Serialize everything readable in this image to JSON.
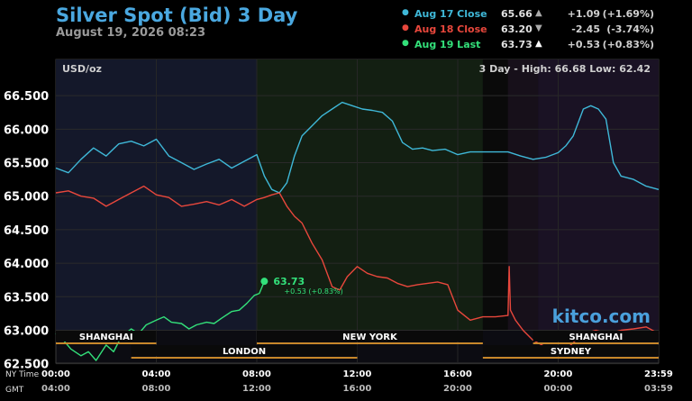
{
  "header": {
    "title": "Silver Spot (Bid) 3 Day",
    "timestamp": "August 19, 2026 08:23"
  },
  "legend": [
    {
      "name": "Aug 17 Close",
      "value": "65.66",
      "arrow": "▲",
      "change": "+1.09",
      "pct": "(+1.69%)",
      "color": "#3fb8d8",
      "text_color": "#3fb8d8",
      "arrow_color": "#aaaaaa"
    },
    {
      "name": "Aug 18 Close",
      "value": "63.20",
      "arrow": "▼",
      "change": "-2.45",
      "pct": "(-3.74%)",
      "color": "#e8473c",
      "text_color": "#e8473c",
      "arrow_color": "#aaaaaa"
    },
    {
      "name": "Aug 19 Last",
      "value": "63.73",
      "arrow": "▲",
      "change": "+0.53",
      "pct": "(+0.83%)",
      "color": "#33e07a",
      "text_color": "#33e07a",
      "arrow_color": "#ffffff"
    }
  ],
  "plot": {
    "unit": "USD/oz",
    "range_text": "3 Day - High: 66.68  Low: 62.42",
    "watermark": "kitco.com",
    "last_label": {
      "price": "63.73",
      "change": "+0.53 (+0.83%)"
    }
  },
  "sessions": [
    {
      "name": "SHANGHAI",
      "start": 0,
      "end": 4,
      "row": 1,
      "color": "#c8882a"
    },
    {
      "name": "NEW YORK",
      "start": 8,
      "end": 17,
      "row": 1,
      "color": "#c8882a"
    },
    {
      "name": "SHANGHAI",
      "start": 19,
      "end": 24,
      "row": 1,
      "color": "#c8882a"
    },
    {
      "name": "LONDON",
      "start": 3,
      "end": 12,
      "row": 2,
      "color": "#c8882a"
    },
    {
      "name": "SYDNEY",
      "start": 17,
      "end": 24,
      "row": 2,
      "color": "#c8882a"
    }
  ],
  "footer": {
    "ny_label": "NY Time",
    "gmt_label": "GMT",
    "ny_ticks": [
      "00:00",
      "04:00",
      "08:00",
      "12:00",
      "16:00",
      "20:00",
      "23:59"
    ],
    "gmt_ticks": [
      "04:00",
      "08:00",
      "12:00",
      "16:00",
      "20:00",
      "00:00",
      "03:59"
    ]
  },
  "chart_data": {
    "type": "line",
    "title": "Silver Spot (Bid) 3 Day",
    "ylabel": "USD/oz",
    "xlabel": "NY Time",
    "x_range": [
      0,
      24
    ],
    "ylim": [
      62.2,
      66.9
    ],
    "y_ticks": [
      62.5,
      63.0,
      63.5,
      64.0,
      64.5,
      65.0,
      65.5,
      66.0,
      66.5
    ],
    "y_tick_labels": [
      "62.500",
      "63.000",
      "63.500",
      "64.000",
      "64.500",
      "65.000",
      "65.500",
      "66.000",
      "66.500"
    ],
    "x_tick_labels": [
      "00:00",
      "04:00",
      "08:00",
      "12:00",
      "16:00",
      "20:00",
      "23:59"
    ],
    "grid": true,
    "series": [
      {
        "name": "Aug 17 Close",
        "color": "#3fb8d8",
        "x": [
          0,
          0.5,
          1,
          1.5,
          2,
          2.5,
          3,
          3.5,
          4,
          4.5,
          5,
          5.5,
          6,
          6.5,
          7,
          7.5,
          8,
          8.3,
          8.6,
          8.9,
          9.2,
          9.5,
          9.8,
          10.2,
          10.6,
          11,
          11.4,
          11.8,
          12.2,
          12.6,
          13,
          13.4,
          13.8,
          14.2,
          14.6,
          15,
          15.5,
          16,
          16.5,
          17,
          17.5,
          18,
          18.5,
          19,
          19.5,
          20,
          20.3,
          20.6,
          21,
          21.3,
          21.6,
          21.9,
          22.2,
          22.5,
          23,
          23.5,
          24
        ],
        "y": [
          65.42,
          65.35,
          65.55,
          65.72,
          65.6,
          65.78,
          65.82,
          65.75,
          65.85,
          65.6,
          65.5,
          65.4,
          65.48,
          65.55,
          65.42,
          65.52,
          65.62,
          65.3,
          65.1,
          65.05,
          65.2,
          65.6,
          65.9,
          66.05,
          66.2,
          66.3,
          66.4,
          66.35,
          66.3,
          66.28,
          66.25,
          66.12,
          65.8,
          65.7,
          65.72,
          65.68,
          65.7,
          65.62,
          65.66,
          65.66,
          65.66,
          65.66,
          65.6,
          65.55,
          65.58,
          65.65,
          65.75,
          65.9,
          66.3,
          66.35,
          66.3,
          66.15,
          65.5,
          65.3,
          65.25,
          65.15,
          65.1
        ]
      },
      {
        "name": "Aug 18 Close",
        "color": "#e8473c",
        "x": [
          0,
          0.5,
          1,
          1.5,
          2,
          2.5,
          3,
          3.5,
          4,
          4.5,
          5,
          5.5,
          6,
          6.5,
          7,
          7.5,
          8,
          8.3,
          8.6,
          8.9,
          9.2,
          9.5,
          9.8,
          10.2,
          10.6,
          11,
          11.3,
          11.6,
          12,
          12.4,
          12.8,
          13.2,
          13.6,
          14,
          14.4,
          14.8,
          15.2,
          15.6,
          16,
          16.5,
          17,
          17.5,
          18,
          18.05,
          18.1,
          18.3,
          18.6,
          19,
          19.5,
          20,
          20.5,
          21,
          21.5,
          22,
          22.5,
          23,
          23.5,
          24
        ],
        "y": [
          65.05,
          65.08,
          65.0,
          64.97,
          64.85,
          64.95,
          65.05,
          65.15,
          65.02,
          64.98,
          64.85,
          64.88,
          64.92,
          64.87,
          64.95,
          64.85,
          64.95,
          64.98,
          65.02,
          65.05,
          64.85,
          64.7,
          64.6,
          64.3,
          64.05,
          63.65,
          63.6,
          63.8,
          63.95,
          63.85,
          63.8,
          63.78,
          63.7,
          63.65,
          63.68,
          63.7,
          63.72,
          63.68,
          63.3,
          63.15,
          63.2,
          63.2,
          63.22,
          63.95,
          63.3,
          63.15,
          63.0,
          62.85,
          62.75,
          62.65,
          62.78,
          62.95,
          63.0,
          62.95,
          63.0,
          63.02,
          63.05,
          62.95
        ]
      },
      {
        "name": "Aug 19 Last",
        "color": "#33e07a",
        "x": [
          0,
          0.3,
          0.6,
          1,
          1.3,
          1.6,
          2,
          2.3,
          2.6,
          3,
          3.3,
          3.6,
          4,
          4.3,
          4.6,
          5,
          5.3,
          5.6,
          6,
          6.3,
          6.6,
          7,
          7.3,
          7.6,
          7.9,
          8.1,
          8.3
        ],
        "y": [
          62.95,
          62.85,
          62.72,
          62.62,
          62.68,
          62.55,
          62.78,
          62.68,
          62.9,
          63.02,
          62.95,
          63.08,
          63.15,
          63.2,
          63.12,
          63.1,
          63.02,
          63.08,
          63.12,
          63.1,
          63.18,
          63.28,
          63.3,
          63.4,
          63.52,
          63.55,
          63.73
        ]
      }
    ]
  }
}
